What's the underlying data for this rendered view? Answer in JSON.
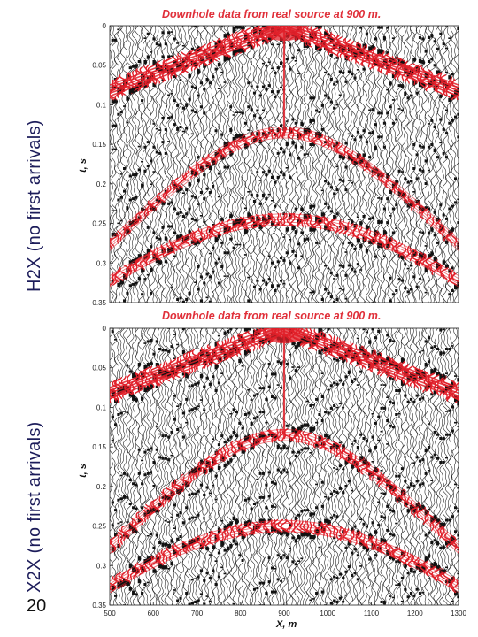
{
  "side_labels": {
    "top": "H2X (no first arrivals)",
    "bottom": "X2X (no first arrivals)"
  },
  "page_number": "20",
  "colors": {
    "trace": "#111111",
    "highlight": "#e0202a",
    "label": "#1c1c5a"
  },
  "chart_data": [
    {
      "type": "seismogram",
      "title": "Downhole data from real source at 900 m.",
      "ylabel": "t, s",
      "xlabel": "",
      "y_ticks": [
        "0",
        "0.05",
        "0.1",
        "0.15",
        "0.2",
        "0.25",
        "0.3",
        "0.35"
      ],
      "y_tick_values": [
        0,
        0.05,
        0.1,
        0.15,
        0.2,
        0.25,
        0.3,
        0.35
      ],
      "x_ticks": [],
      "xlim": [
        500,
        1300
      ],
      "ylim": [
        0,
        0.35
      ],
      "source_x": 900,
      "events": [
        {
          "name": "direct",
          "t0": 0.0,
          "slope": 0.000205
        },
        {
          "name": "reflection",
          "t0": 0.135,
          "v": 1650
        },
        {
          "name": "reflection2",
          "t0": 0.245,
          "v": 1900
        }
      ]
    },
    {
      "type": "seismogram",
      "title": "Downhole data from real source at 900 m.",
      "ylabel": "t, s",
      "xlabel": "X, m",
      "y_ticks": [
        "0",
        "0.05",
        "0.1",
        "0.15",
        "0.2",
        "0.25",
        "0.3",
        "0.35"
      ],
      "y_tick_values": [
        0,
        0.05,
        0.1,
        0.15,
        0.2,
        0.25,
        0.3,
        0.35
      ],
      "x_ticks": [
        "500",
        "600",
        "700",
        "800",
        "900",
        "1000",
        "1100",
        "1200",
        "1300"
      ],
      "x_tick_values": [
        500,
        600,
        700,
        800,
        900,
        1000,
        1100,
        1200,
        1300
      ],
      "xlim": [
        500,
        1300
      ],
      "ylim": [
        0,
        0.35
      ],
      "source_x": 900,
      "events": [
        {
          "name": "direct",
          "t0": 0.0,
          "slope": 0.000205
        },
        {
          "name": "reflection",
          "t0": 0.135,
          "v": 1650
        },
        {
          "name": "reflection2",
          "t0": 0.25,
          "v": 1900
        }
      ]
    }
  ]
}
